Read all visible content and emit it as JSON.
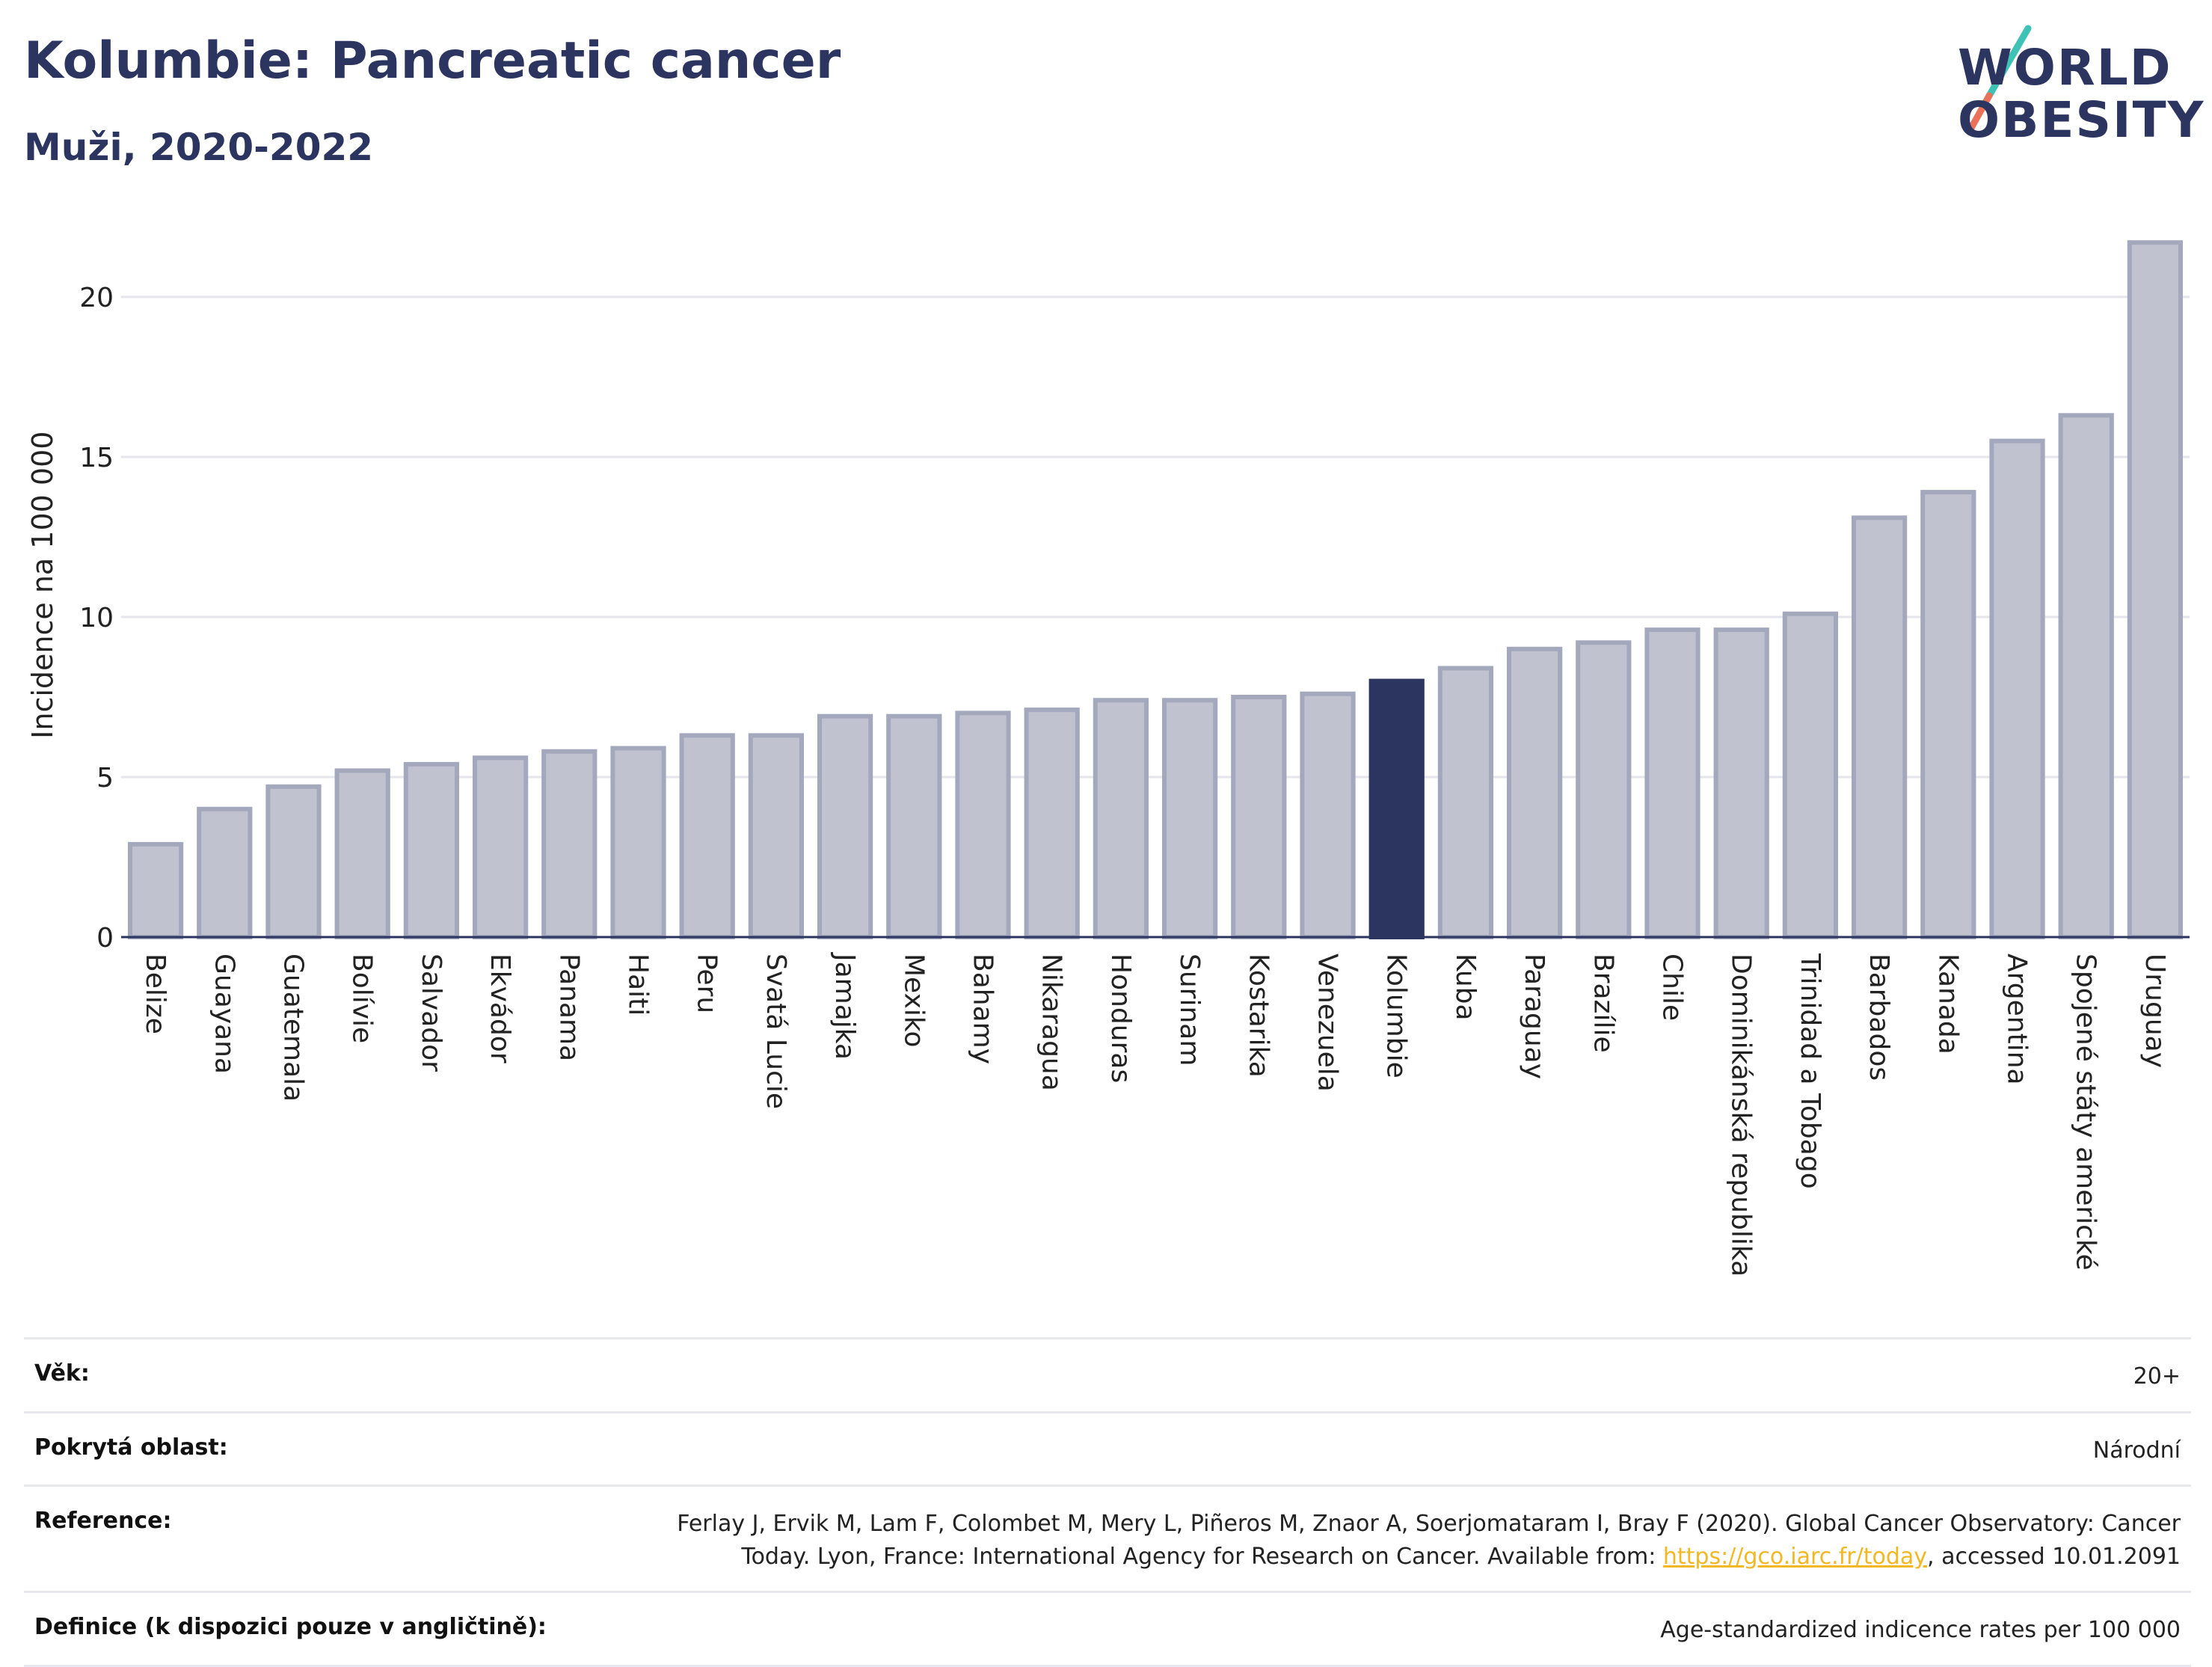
{
  "header": {
    "title": "Kolumbie: Pancreatic cancer",
    "subtitle": "Muži, 2020-2022"
  },
  "logo": {
    "line1": "WORLD",
    "line2": "OBESITY"
  },
  "colors": {
    "default_bar": "#c0c3cf",
    "default_bar_border": "#a3a8bc",
    "highlight_bar": "#2b3560",
    "text_primary": "#2b3560"
  },
  "chart_data": {
    "type": "bar",
    "ylabel": "Incidence na 100 000",
    "ylim": [
      0,
      22.5
    ],
    "yticks": [
      0,
      5,
      10,
      15,
      20
    ],
    "grid": true,
    "highlight": "Kolumbie",
    "categories": [
      "Belize",
      "Guayana",
      "Guatemala",
      "Bolívie",
      "Salvador",
      "Ekvádor",
      "Panama",
      "Haiti",
      "Peru",
      "Svatá Lucie",
      "Jamajka",
      "Mexiko",
      "Bahamy",
      "Nikaragua",
      "Honduras",
      "Surinam",
      "Kostarika",
      "Venezuela",
      "Kolumbie",
      "Kuba",
      "Paraguay",
      "Brazílie",
      "Chile",
      "Dominikánská republika",
      "Trinidad a Tobago",
      "Barbados",
      "Kanada",
      "Argentina",
      "Spojené státy americké",
      "Uruguay"
    ],
    "values": [
      2.9,
      4.0,
      4.7,
      5.2,
      5.4,
      5.6,
      5.8,
      5.9,
      6.3,
      6.3,
      6.9,
      6.9,
      7.0,
      7.1,
      7.4,
      7.4,
      7.5,
      7.6,
      8.0,
      8.4,
      9.0,
      9.2,
      9.6,
      9.6,
      10.1,
      13.1,
      13.9,
      15.5,
      16.3,
      21.7
    ]
  },
  "footer": {
    "rows": [
      {
        "label": "Věk:",
        "value": "20+"
      },
      {
        "label": "Pokrytá oblast:",
        "value": "Národní"
      },
      {
        "label": "Reference:",
        "value_before": "Ferlay J, Ervik M, Lam F, Colombet M, Mery L, Piñeros M, Znaor A, Soerjomataram I, Bray F (2020). Global Cancer Observatory: Cancer Today. Lyon, France: International Agency for Research on Cancer. Available from: ",
        "link": "https://gco.iarc.fr/today",
        "value_after": ", accessed 10.01.2091"
      },
      {
        "label": "Definice (k dispozici pouze v angličtině):",
        "value": "Age-standardized indicence rates per 100 000"
      }
    ]
  }
}
